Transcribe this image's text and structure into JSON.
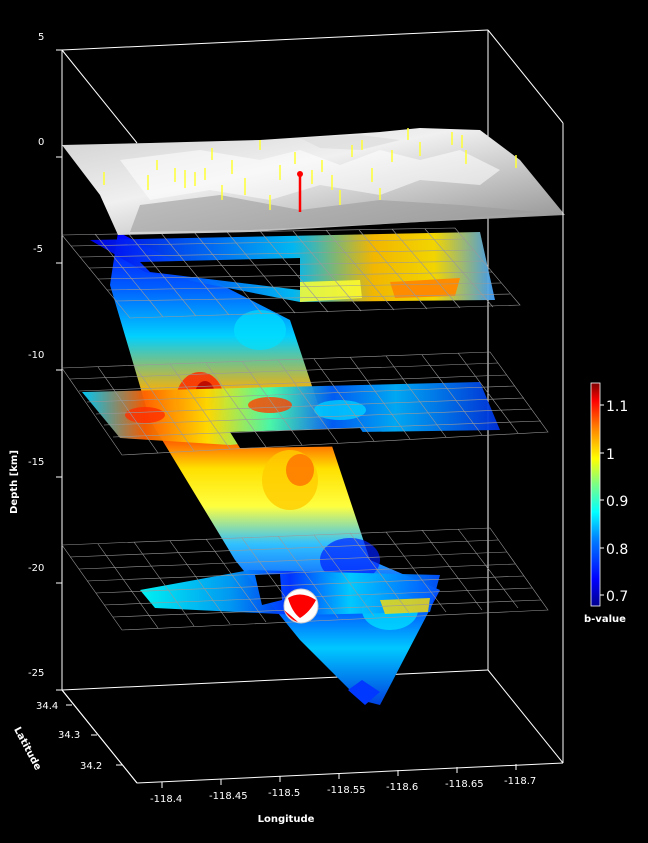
{
  "chart_data": {
    "type": "3d-volume",
    "axes": {
      "depth": {
        "label": "Depth [km]",
        "ticks": [
          "5",
          "0",
          "-5",
          "-10",
          "-15",
          "-20",
          "-25"
        ],
        "range": [
          -25,
          5
        ]
      },
      "latitude": {
        "label": "Latitude",
        "ticks": [
          "34.4",
          "34.3",
          "34.2"
        ]
      },
      "longitude": {
        "label": "Longitude",
        "ticks": [
          "-118.4",
          "-118.45",
          "-118.5",
          "-118.55",
          "-118.6",
          "-118.65",
          "-118.7"
        ]
      }
    },
    "depth_slices_km": [
      -5,
      -12.5,
      -20
    ],
    "colorbar": {
      "title": "b-value",
      "ticks": [
        "1.1",
        "1",
        "0.9",
        "0.8",
        "0.7"
      ],
      "range": [
        0.68,
        1.15
      ],
      "colormap": [
        "#00008f",
        "#0000ff",
        "#0080ff",
        "#00ffff",
        "#80ff80",
        "#ffff00",
        "#ff8000",
        "#ff0000",
        "#800000"
      ]
    },
    "features": {
      "surface_topography": "gray-relief",
      "aftershock_markers_color": "#ffff33",
      "mainshock_marker_color": "#ff0000",
      "focal_mechanism_colors": [
        "#ff0000",
        "#ffffff"
      ]
    }
  }
}
